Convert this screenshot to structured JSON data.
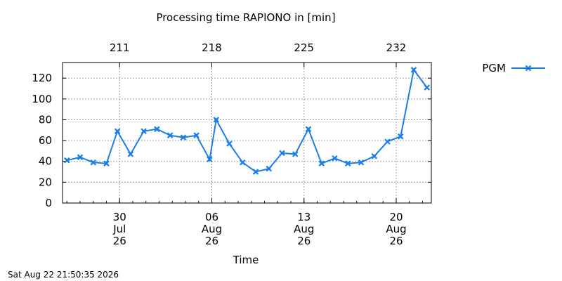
{
  "chart_data": {
    "type": "line",
    "title": "Processing time RAPIONO in [min]",
    "xlabel": "Time",
    "ylabel": "",
    "ylim": [
      0,
      135
    ],
    "yticks": [
      0,
      20,
      40,
      60,
      80,
      100,
      120
    ],
    "grid": true,
    "legend_position": "right",
    "top_axis_ticks": [
      {
        "x": "2026-07-30",
        "label": "211"
      },
      {
        "x": "2026-08-06",
        "label": "218"
      },
      {
        "x": "2026-08-13",
        "label": "225"
      },
      {
        "x": "2026-08-20",
        "label": "232"
      }
    ],
    "bottom_axis_ticks": [
      {
        "x": "2026-07-30",
        "label": [
          "30",
          "Jul",
          "26"
        ]
      },
      {
        "x": "2026-08-06",
        "label": [
          "06",
          "Aug",
          "26"
        ]
      },
      {
        "x": "2026-08-13",
        "label": [
          "13",
          "Aug",
          "26"
        ]
      },
      {
        "x": "2026-08-20",
        "label": [
          "20",
          "Aug",
          "26"
        ]
      }
    ],
    "xlim": [
      "2026-07-25T16:00",
      "2026-08-22T16:00"
    ],
    "series": [
      {
        "name": "PGM",
        "color": "#1a7ee8",
        "marker": "x",
        "points": [
          {
            "x": "2026-07-26",
            "y": 41
          },
          {
            "x": "2026-07-27",
            "y": 44
          },
          {
            "x": "2026-07-28",
            "y": 39
          },
          {
            "x": "2026-07-29",
            "y": 38
          },
          {
            "x": "2026-07-29T20:00",
            "y": 69
          },
          {
            "x": "2026-07-30T20:00",
            "y": 47
          },
          {
            "x": "2026-07-31T20:00",
            "y": 69
          },
          {
            "x": "2026-08-01T20:00",
            "y": 71
          },
          {
            "x": "2026-08-02T20:00",
            "y": 65
          },
          {
            "x": "2026-08-03T20:00",
            "y": 63
          },
          {
            "x": "2026-08-04T20:00",
            "y": 65
          },
          {
            "x": "2026-08-05T20:00",
            "y": 42
          },
          {
            "x": "2026-08-06T08:00",
            "y": 80
          },
          {
            "x": "2026-08-07T08:00",
            "y": 57
          },
          {
            "x": "2026-08-08T08:00",
            "y": 39
          },
          {
            "x": "2026-08-09T08:00",
            "y": 30
          },
          {
            "x": "2026-08-10T08:00",
            "y": 33
          },
          {
            "x": "2026-08-11T08:00",
            "y": 48
          },
          {
            "x": "2026-08-12T08:00",
            "y": 47
          },
          {
            "x": "2026-08-13T08:00",
            "y": 71
          },
          {
            "x": "2026-08-14T08:00",
            "y": 38
          },
          {
            "x": "2026-08-15T08:00",
            "y": 43
          },
          {
            "x": "2026-08-16T08:00",
            "y": 38
          },
          {
            "x": "2026-08-17T08:00",
            "y": 39
          },
          {
            "x": "2026-08-18T08:00",
            "y": 45
          },
          {
            "x": "2026-08-19T08:00",
            "y": 59
          },
          {
            "x": "2026-08-20T08:00",
            "y": 64
          },
          {
            "x": "2026-08-21T08:00",
            "y": 128
          },
          {
            "x": "2026-08-22T08:00",
            "y": 111
          }
        ]
      }
    ]
  },
  "footer": {
    "timestamp": "Sat Aug 22 21:50:35 2026"
  }
}
